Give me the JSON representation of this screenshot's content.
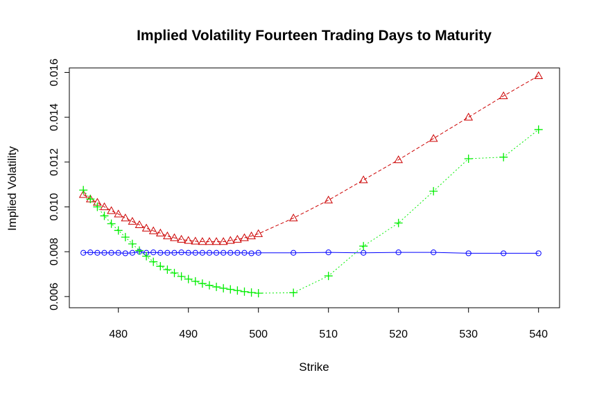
{
  "chart_data": {
    "type": "line",
    "title": "Implied Volatility Fourteen Trading Days to Maturity",
    "xlabel": "Strike",
    "ylabel": "Implied Volatility",
    "xlim": [
      473,
      543
    ],
    "ylim": [
      0.0055,
      0.0162
    ],
    "xticks": [
      480,
      490,
      500,
      510,
      520,
      530,
      540
    ],
    "yticks": [
      0.006,
      0.008,
      0.01,
      0.012,
      0.014,
      0.016
    ],
    "ytick_labels": [
      "0.006",
      "0.008",
      "0.010",
      "0.012",
      "0.014",
      "0.016"
    ],
    "x": [
      475,
      476,
      477,
      478,
      479,
      480,
      481,
      482,
      483,
      484,
      485,
      486,
      487,
      488,
      489,
      490,
      491,
      492,
      493,
      494,
      495,
      496,
      497,
      498,
      499,
      500,
      505,
      510,
      515,
      520,
      525,
      530,
      535,
      540
    ],
    "series": [
      {
        "name": "blue",
        "color": "#0000ff",
        "marker": "circle",
        "line": "solid",
        "values": [
          0.00795,
          0.00797,
          0.00795,
          0.00795,
          0.00795,
          0.00795,
          0.00793,
          0.00795,
          0.008,
          0.00795,
          0.00797,
          0.00795,
          0.00795,
          0.00795,
          0.00797,
          0.00795,
          0.00795,
          0.00795,
          0.00795,
          0.00795,
          0.00795,
          0.00795,
          0.00795,
          0.00795,
          0.00793,
          0.00795,
          0.00795,
          0.00797,
          0.00795,
          0.00797,
          0.00797,
          0.00793,
          0.00793,
          0.00793
        ]
      },
      {
        "name": "red",
        "color": "#cc0000",
        "marker": "triangle",
        "line": "dashed",
        "values": [
          0.01055,
          0.01035,
          0.0102,
          0.01,
          0.00983,
          0.00968,
          0.0095,
          0.00935,
          0.0092,
          0.00905,
          0.00893,
          0.00883,
          0.0087,
          0.00862,
          0.00855,
          0.0085,
          0.00847,
          0.00845,
          0.00845,
          0.00845,
          0.00845,
          0.0085,
          0.00855,
          0.00862,
          0.0087,
          0.0088,
          0.0095,
          0.0103,
          0.0112,
          0.0121,
          0.01305,
          0.014,
          0.01495,
          0.01585
        ]
      },
      {
        "name": "green",
        "color": "#00ee00",
        "marker": "plus",
        "line": "dotted",
        "values": [
          0.01075,
          0.01035,
          0.01,
          0.0096,
          0.00925,
          0.00895,
          0.00865,
          0.00835,
          0.00805,
          0.0078,
          0.00755,
          0.00735,
          0.0072,
          0.00705,
          0.0069,
          0.00678,
          0.00668,
          0.00658,
          0.0065,
          0.00643,
          0.00637,
          0.00632,
          0.00627,
          0.00622,
          0.00618,
          0.00615,
          0.00617,
          0.00692,
          0.00825,
          0.00928,
          0.0107,
          0.01215,
          0.01222,
          0.01345
        ]
      }
    ]
  }
}
